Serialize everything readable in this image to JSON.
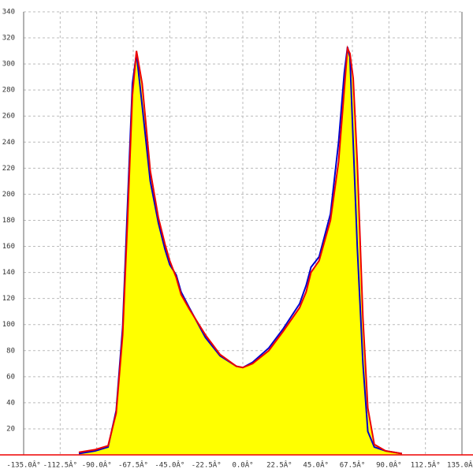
{
  "chart_data": {
    "type": "area",
    "x": [
      -101,
      -91,
      -83,
      -78,
      -74,
      -71,
      -68,
      -65.5,
      -62,
      -57,
      -52,
      -48,
      -45,
      -41,
      -38,
      -33,
      -23,
      -14,
      -4,
      0,
      6,
      16,
      25,
      35,
      39,
      42,
      47,
      54,
      59,
      62.5,
      64.5,
      66,
      68,
      70.5,
      74,
      77,
      81,
      88,
      98
    ],
    "series": [
      {
        "color": "#0000cc",
        "values": [
          1,
          3,
          6,
          34,
          98,
          192,
          285,
          308,
          268,
          210,
          178,
          158,
          146,
          138,
          125,
          113,
          90,
          76,
          68,
          67,
          71,
          82,
          97,
          116,
          130,
          144,
          152,
          185,
          240,
          293,
          313,
          305,
          240,
          160,
          70,
          18,
          6,
          3,
          1
        ]
      },
      {
        "color": "#ee0000",
        "values": [
          2,
          4,
          7,
          32,
          92,
          180,
          276,
          310,
          285,
          218,
          182,
          162,
          149,
          136,
          123,
          112,
          92,
          77,
          68,
          67,
          70,
          80,
          95,
          113,
          125,
          140,
          149,
          180,
          225,
          280,
          312,
          308,
          289,
          225,
          105,
          36,
          8,
          3,
          1
        ]
      }
    ],
    "fill_color": "#ffff00",
    "xlim": [
      -135,
      135
    ],
    "xticks": [
      {
        "value": -135,
        "label": "-135.0Â°"
      },
      {
        "value": -112.5,
        "label": "-112.5Â°"
      },
      {
        "value": -90,
        "label": "-90.0Â°"
      },
      {
        "value": -67.5,
        "label": "-67.5Â°"
      },
      {
        "value": -45,
        "label": "-45.0Â°"
      },
      {
        "value": -22.5,
        "label": "-22.5Â°"
      },
      {
        "value": 0,
        "label": "0.0Â°"
      },
      {
        "value": 22.5,
        "label": "22.5Â°"
      },
      {
        "value": 45,
        "label": "45.0Â°"
      },
      {
        "value": 67.5,
        "label": "67.5Â°"
      },
      {
        "value": 90,
        "label": "90.0Â°"
      },
      {
        "value": 112.5,
        "label": "112.5Â°"
      },
      {
        "value": 135,
        "label": "135.0Â°"
      }
    ],
    "ylim": [
      0,
      340
    ],
    "yticks": [
      20,
      40,
      60,
      80,
      100,
      120,
      140,
      160,
      180,
      200,
      220,
      240,
      260,
      280,
      300,
      320,
      340
    ],
    "grid": true
  }
}
